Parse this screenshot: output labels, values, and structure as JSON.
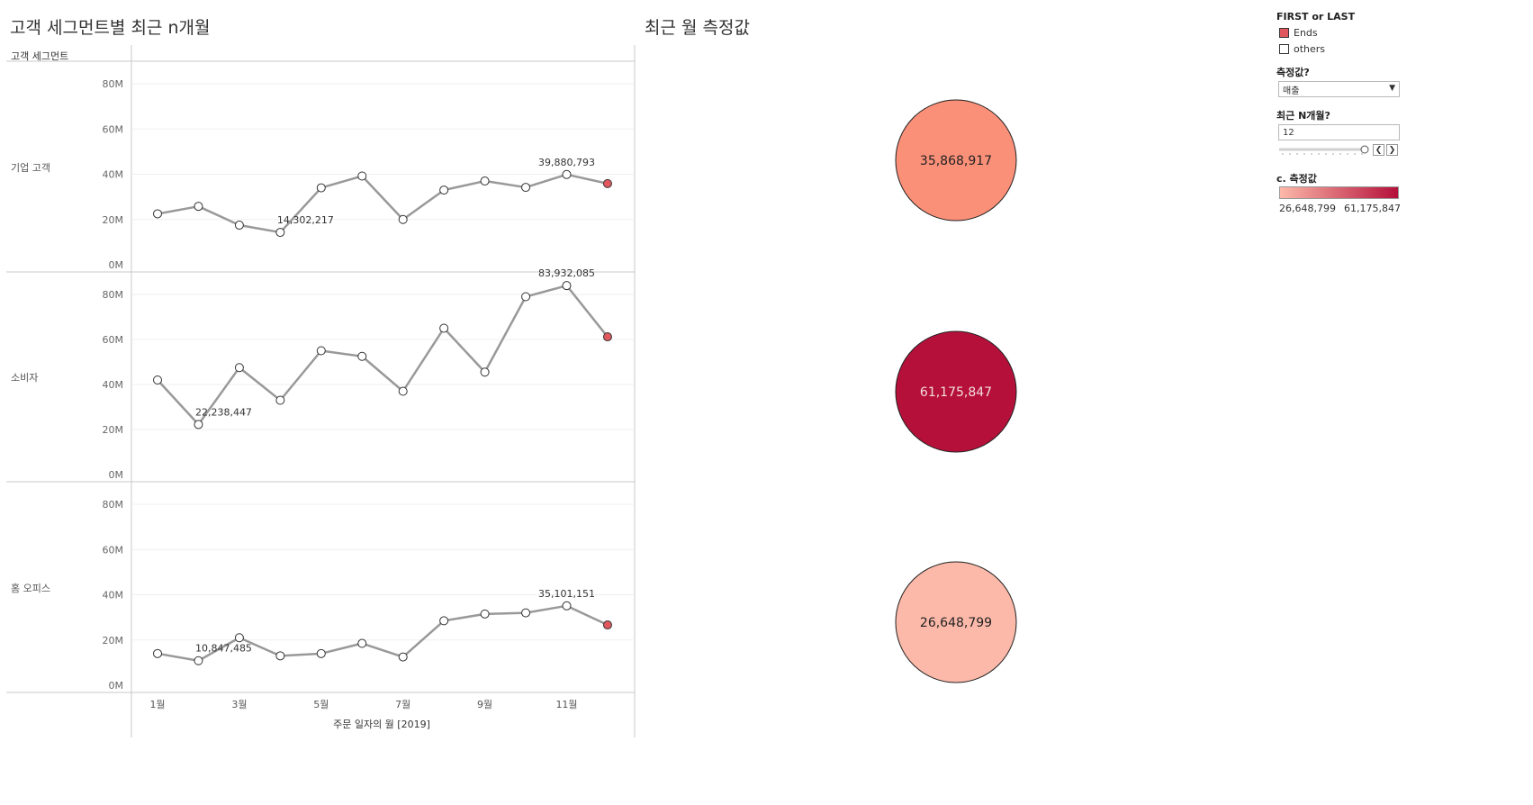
{
  "left_title": "고객 세그먼트별 최근 n개월",
  "right_title": "최근 월 측정값",
  "row_header": "고객 세그먼트",
  "legend": {
    "first_last_title": "FIRST or LAST",
    "items": [
      {
        "label": "Ends",
        "color": "#e0585e"
      },
      {
        "label": "others",
        "color": "#ffffff"
      }
    ],
    "measure_title": "측정값?",
    "measure_value": "매출",
    "n_title": "최근 N개월?",
    "n_value": "12",
    "n_slider_fraction": 1.0,
    "color_title": "c. 측정값",
    "color_min": "26,648,799",
    "color_max": "61,175,847",
    "color_low": "#fcb9a9",
    "color_high": "#b5103a"
  },
  "chart_data": {
    "type": "line",
    "x": [
      1,
      2,
      3,
      4,
      5,
      6,
      7,
      8,
      9,
      10,
      11,
      12
    ],
    "x_ticks": [
      1,
      3,
      5,
      7,
      9,
      11
    ],
    "x_tick_labels": [
      "1월",
      "3월",
      "5월",
      "7월",
      "9월",
      "11월"
    ],
    "xlabel": "주문 일자의 월 [2019]",
    "y_ticks": [
      0,
      20000000,
      40000000,
      60000000,
      80000000
    ],
    "y_tick_labels": [
      "0M",
      "20M",
      "40M",
      "60M",
      "80M"
    ],
    "ylim": [
      0,
      90000000
    ],
    "line_color": "#999999",
    "end_color": "#e0585e",
    "series": [
      {
        "name": "기업 고객",
        "values": [
          22500000,
          25800000,
          17500000,
          14302217,
          34000000,
          39200000,
          20000000,
          33000000,
          37000000,
          34200000,
          39880793,
          35868917
        ],
        "max_label": "39,880,793",
        "min_label": "14,302,217",
        "max_index": 10,
        "min_index": 3,
        "latest_label": "35,868,917",
        "latest_color": "#fb9079"
      },
      {
        "name": "소비자",
        "values": [
          42000000,
          22238447,
          47500000,
          33000000,
          55000000,
          52500000,
          37000000,
          65000000,
          45500000,
          79000000,
          83932085,
          61175847
        ],
        "max_label": "83,932,085",
        "min_label": "22,238,447",
        "max_index": 10,
        "min_index": 1,
        "latest_label": "61,175,847",
        "latest_color": "#b5103a"
      },
      {
        "name": "홈 오피스",
        "values": [
          14000000,
          10847485,
          21000000,
          13000000,
          14000000,
          18500000,
          12500000,
          28500000,
          31500000,
          32000000,
          35101151,
          26648799
        ],
        "max_label": "35,101,151",
        "min_label": "10,847,485",
        "max_index": 10,
        "min_index": 1,
        "latest_label": "26,648,799",
        "latest_color": "#fcb9a9"
      }
    ]
  }
}
